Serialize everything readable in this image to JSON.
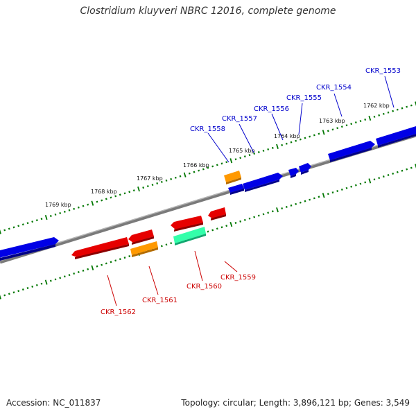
{
  "title": "Clostridium kluyveri NBRC 12016, complete genome",
  "footer": {
    "accession": "Accession: NC_011837",
    "summary": "Topology: circular; Length: 3,896,121 bp; Genes: 3,549"
  },
  "colors": {
    "forward_gene": "#0000e6",
    "reverse_gene": "#e60000",
    "orange_gene": "#ff9900",
    "rna_gene": "#33ffaa",
    "backbone": "#7a7a7a",
    "ruler": "#007700",
    "forward_label": "#0000cc",
    "reverse_label": "#cc0000"
  },
  "scale_labels": [
    "1762 kbp",
    "1763 kbp",
    "1764 kbp",
    "1765 kbp",
    "1766 kbp",
    "1767 kbp",
    "1768 kbp",
    "1769 kbp"
  ],
  "forward_labels": [
    "CKR_1553",
    "CKR_1554",
    "CKR_1555",
    "CKR_1556",
    "CKR_1557",
    "CKR_1558"
  ],
  "reverse_labels": [
    "CKR_1559",
    "CKR_1560",
    "CKR_1561",
    "CKR_1562"
  ]
}
